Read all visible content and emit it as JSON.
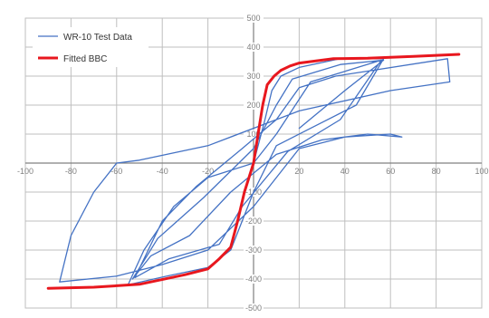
{
  "colors": {
    "test_series": "#4472C4",
    "fitted_series": "#E8171E",
    "grid": "#bfbfbf",
    "axis": "#808080",
    "tick_text": "#808080"
  },
  "chart_data": {
    "type": "line",
    "title": "",
    "xlabel": "",
    "ylabel": "",
    "xlim": [
      -100,
      100
    ],
    "ylim": [
      -500,
      500
    ],
    "x_ticks": [
      -100,
      -80,
      -60,
      -40,
      -20,
      0,
      20,
      40,
      60,
      80,
      100
    ],
    "y_ticks": [
      -500,
      -400,
      -300,
      -200,
      -100,
      0,
      100,
      200,
      300,
      400,
      500
    ],
    "x_tick_labels": [
      "-100",
      "-80",
      "-60",
      "-40",
      "-20",
      "",
      "20",
      "40",
      "60",
      "80",
      "100"
    ],
    "y_tick_labels": [
      "-500",
      "-400",
      "-300",
      "-200",
      "-100",
      "",
      "100",
      "200",
      "300",
      "400",
      "500"
    ],
    "grid": true,
    "legend_position": "top-left",
    "series": [
      {
        "name": "WR-10 Test Data",
        "points": [
          [
            0,
            0
          ],
          [
            5,
            150
          ],
          [
            8,
            250
          ],
          [
            12,
            300
          ],
          [
            20,
            330
          ],
          [
            38,
            360
          ],
          [
            57,
            360
          ],
          [
            45,
            200
          ],
          [
            25,
            120
          ],
          [
            10,
            60
          ],
          [
            0,
            -100
          ],
          [
            -5,
            -200
          ],
          [
            -10,
            -300
          ],
          [
            -20,
            -360
          ],
          [
            -38,
            -390
          ],
          [
            -55,
            -420
          ],
          [
            -48,
            -300
          ],
          [
            -35,
            -150
          ],
          [
            -20,
            -50
          ],
          [
            0,
            0
          ],
          [
            10,
            100
          ],
          [
            25,
            280
          ],
          [
            56,
            355
          ],
          [
            38,
            150
          ],
          [
            15,
            40
          ],
          [
            -5,
            -150
          ],
          [
            -15,
            -280
          ],
          [
            -37,
            -330
          ],
          [
            -52,
            -395
          ],
          [
            -40,
            -200
          ],
          [
            -25,
            -80
          ],
          [
            -5,
            50
          ],
          [
            10,
            150
          ],
          [
            20,
            260
          ],
          [
            36,
            300
          ],
          [
            85,
            360
          ],
          [
            86,
            280
          ],
          [
            60,
            250
          ],
          [
            20,
            180
          ],
          [
            -20,
            60
          ],
          [
            -50,
            10
          ],
          [
            -60,
            0
          ],
          [
            -70,
            -100
          ],
          [
            -80,
            -250
          ],
          [
            -85,
            -410
          ],
          [
            -60,
            -390
          ],
          [
            -40,
            -350
          ],
          [
            -20,
            -300
          ],
          [
            0,
            -150
          ],
          [
            20,
            50
          ],
          [
            40,
            90
          ],
          [
            60,
            100
          ],
          [
            65,
            90
          ],
          [
            50,
            100
          ],
          [
            30,
            80
          ],
          [
            10,
            30
          ],
          [
            -10,
            -100
          ],
          [
            -28,
            -250
          ],
          [
            -45,
            -320
          ],
          [
            -53,
            -400
          ],
          [
            -42,
            -260
          ],
          [
            -22,
            -120
          ],
          [
            0,
            50
          ],
          [
            10,
            200
          ],
          [
            17,
            290
          ],
          [
            38,
            340
          ],
          [
            57,
            355
          ],
          [
            40,
            250
          ],
          [
            20,
            120
          ]
        ]
      },
      {
        "name": "Fitted BBC",
        "points": [
          [
            -90,
            -432
          ],
          [
            -70,
            -428
          ],
          [
            -50,
            -418
          ],
          [
            -30,
            -385
          ],
          [
            -20,
            -365
          ],
          [
            -15,
            -330
          ],
          [
            -10,
            -290
          ],
          [
            -7,
            -200
          ],
          [
            -4,
            -100
          ],
          [
            0,
            0
          ],
          [
            2,
            100
          ],
          [
            4,
            200
          ],
          [
            6,
            270
          ],
          [
            9,
            300
          ],
          [
            12,
            320
          ],
          [
            16,
            335
          ],
          [
            20,
            345
          ],
          [
            35,
            360
          ],
          [
            50,
            362
          ],
          [
            70,
            368
          ],
          [
            90,
            375
          ]
        ]
      }
    ]
  }
}
